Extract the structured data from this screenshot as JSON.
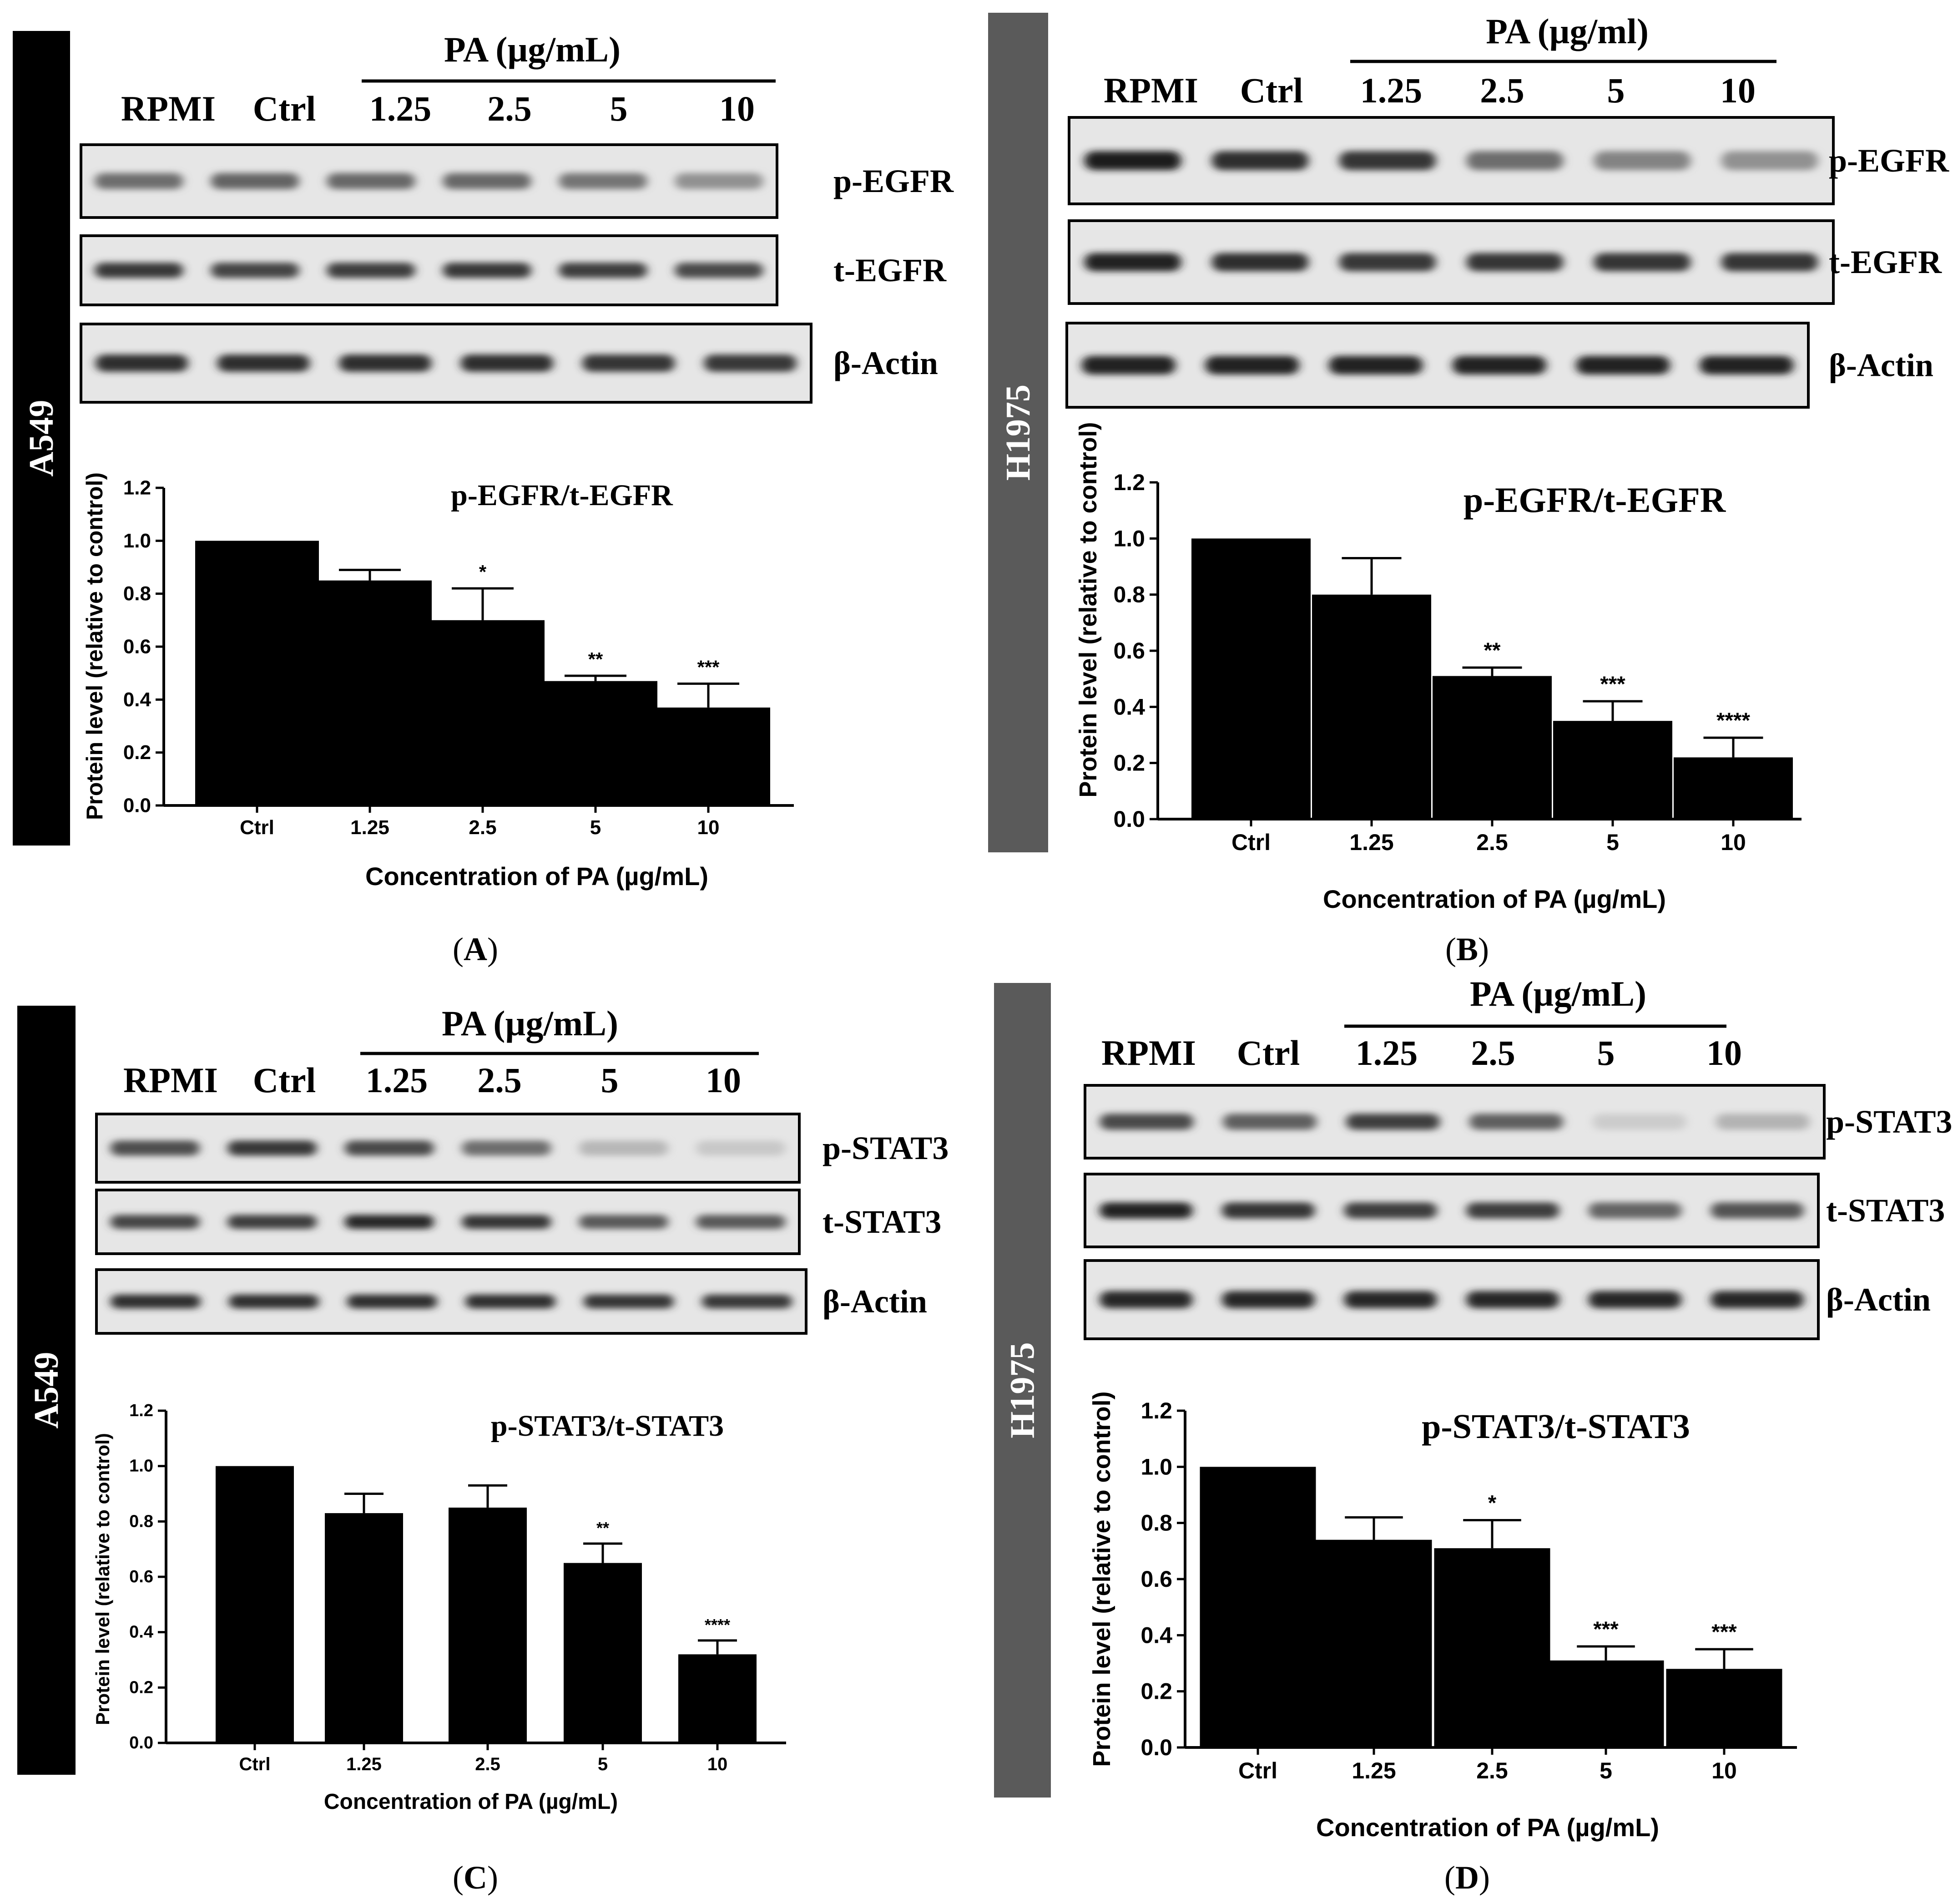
{
  "panels": [
    {
      "letter": "A",
      "cell_line": "A549",
      "pa_header": "PA (µg/mL)",
      "lanes": [
        "RPMI",
        "Ctrl",
        "1.25",
        "2.5",
        "5",
        "10"
      ],
      "blots": [
        {
          "label": "p-EGFR",
          "intensity": [
            0.55,
            0.6,
            0.58,
            0.58,
            0.52,
            0.38
          ]
        },
        {
          "label": "t-EGFR",
          "intensity": [
            0.8,
            0.75,
            0.78,
            0.8,
            0.78,
            0.72
          ]
        },
        {
          "label": "β-Actin",
          "intensity": [
            0.85,
            0.85,
            0.85,
            0.85,
            0.82,
            0.8
          ]
        }
      ],
      "chart_data": {
        "type": "bar",
        "title": "p-EGFR/t-EGFR",
        "categories": [
          "Ctrl",
          "1.25",
          "2.5",
          "5",
          "10"
        ],
        "values": [
          1.0,
          0.85,
          0.7,
          0.47,
          0.37
        ],
        "errors": [
          0,
          0.04,
          0.12,
          0.02,
          0.09
        ],
        "significance": [
          "",
          "",
          "*",
          "**",
          "***"
        ],
        "xlabel": "Concentration of PA (µg/mL)",
        "ylabel": "Protein level (relative to control)",
        "ylim": [
          0,
          1.2
        ],
        "yticks": [
          "0.0",
          "0.2",
          "0.4",
          "0.6",
          "0.8",
          "1.0",
          "1.2"
        ]
      }
    },
    {
      "letter": "B",
      "cell_line": "H1975",
      "pa_header": "PA (µg/ml)",
      "lanes": [
        "RPMI",
        "Ctrl",
        "1.25",
        "2.5",
        "5",
        "10"
      ],
      "blots": [
        {
          "label": "p-EGFR",
          "intensity": [
            0.95,
            0.85,
            0.82,
            0.55,
            0.45,
            0.38
          ]
        },
        {
          "label": "t-EGFR",
          "intensity": [
            0.9,
            0.85,
            0.8,
            0.82,
            0.82,
            0.82
          ]
        },
        {
          "label": "β-Actin",
          "intensity": [
            0.92,
            0.92,
            0.92,
            0.92,
            0.92,
            0.92
          ]
        }
      ],
      "chart_data": {
        "type": "bar",
        "title": "p-EGFR/t-EGFR",
        "categories": [
          "Ctrl",
          "1.25",
          "2.5",
          "5",
          "10"
        ],
        "values": [
          1.0,
          0.8,
          0.51,
          0.35,
          0.22
        ],
        "errors": [
          0,
          0.13,
          0.03,
          0.07,
          0.07
        ],
        "significance": [
          "",
          "",
          "**",
          "***",
          "****"
        ],
        "xlabel": "Concentration of PA (µg/mL)",
        "ylabel": "Protein level (relative to control)",
        "ylim": [
          0,
          1.2
        ],
        "yticks": [
          "0.0",
          "0.2",
          "0.4",
          "0.6",
          "0.8",
          "1.0",
          "1.2"
        ]
      }
    },
    {
      "letter": "C",
      "cell_line": "A549",
      "pa_header": "PA (µg/mL)",
      "lanes": [
        "RPMI",
        "Ctrl",
        "1.25",
        "2.5",
        "5",
        "10"
      ],
      "blots": [
        {
          "label": "p-STAT3",
          "intensity": [
            0.7,
            0.8,
            0.72,
            0.55,
            0.2,
            0.12
          ]
        },
        {
          "label": "t-STAT3",
          "intensity": [
            0.75,
            0.78,
            0.88,
            0.82,
            0.65,
            0.65
          ]
        },
        {
          "label": "β-Actin",
          "intensity": [
            0.85,
            0.85,
            0.85,
            0.85,
            0.82,
            0.8
          ]
        }
      ],
      "chart_data": {
        "type": "bar",
        "title": "p-STAT3/t-STAT3",
        "categories": [
          "Ctrl",
          "1.25",
          "2.5",
          "5",
          "10"
        ],
        "values": [
          1.0,
          0.83,
          0.85,
          0.65,
          0.32
        ],
        "errors": [
          0,
          0.07,
          0.08,
          0.07,
          0.05
        ],
        "significance": [
          "",
          "",
          "",
          "**",
          "****"
        ],
        "xlabel": "Concentration of PA (µg/mL)",
        "ylabel": "Protein level (relative to control)",
        "ylim": [
          0,
          1.2
        ],
        "yticks": [
          "0.0",
          "0.2",
          "0.4",
          "0.6",
          "0.8",
          "1.0",
          "1.2"
        ]
      }
    },
    {
      "letter": "D",
      "cell_line": "H1975",
      "pa_header": "PA (µg/mL)",
      "lanes": [
        "RPMI",
        "Ctrl",
        "1.25",
        "2.5",
        "5",
        "10"
      ],
      "blots": [
        {
          "label": "p-STAT3",
          "intensity": [
            0.72,
            0.62,
            0.78,
            0.62,
            0.1,
            0.22
          ]
        },
        {
          "label": "t-STAT3",
          "intensity": [
            0.9,
            0.82,
            0.78,
            0.78,
            0.6,
            0.68
          ]
        },
        {
          "label": "β-Actin",
          "intensity": [
            0.88,
            0.88,
            0.88,
            0.88,
            0.88,
            0.88
          ]
        }
      ],
      "chart_data": {
        "type": "bar",
        "title": "p-STAT3/t-STAT3",
        "categories": [
          "Ctrl",
          "1.25",
          "2.5",
          "5",
          "10"
        ],
        "values": [
          1.0,
          0.74,
          0.71,
          0.31,
          0.28
        ],
        "errors": [
          0,
          0.08,
          0.1,
          0.05,
          0.07
        ],
        "significance": [
          "",
          "",
          "*",
          "***",
          "***"
        ],
        "xlabel": "Concentration of PA (µg/mL)",
        "ylabel": "Protein level (relative to control)",
        "ylim": [
          0,
          1.2
        ],
        "yticks": [
          "0.0",
          "0.2",
          "0.4",
          "0.6",
          "0.8",
          "1.0",
          "1.2"
        ]
      }
    }
  ]
}
